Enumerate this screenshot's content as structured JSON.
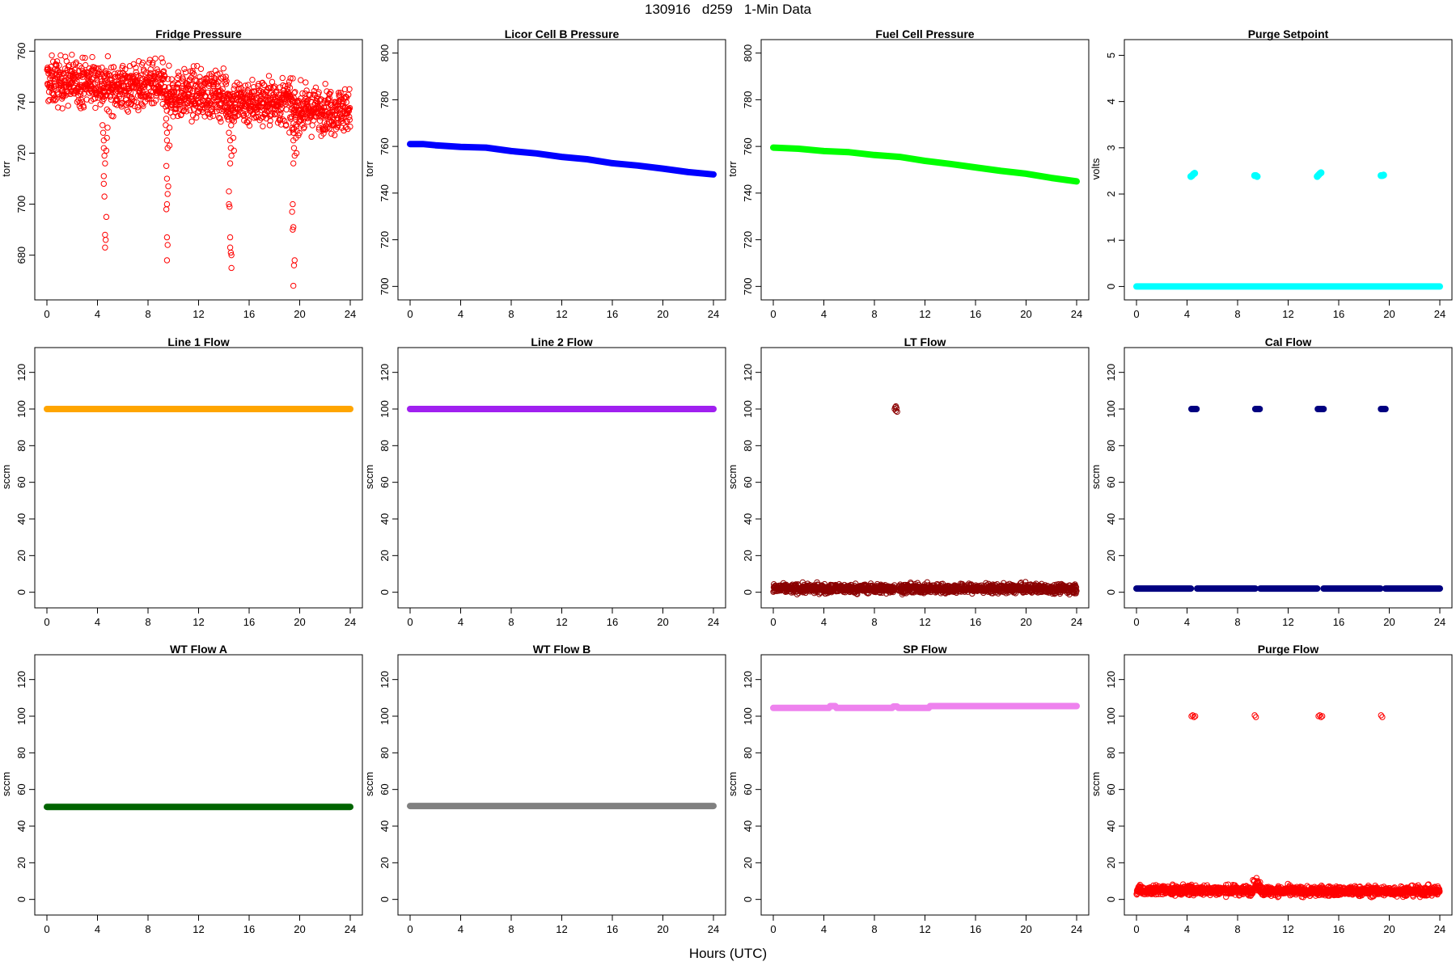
{
  "page": {
    "title": "130916   d259   1-Min Data",
    "xlabel": "Hours (UTC)"
  },
  "chart_data": [
    {
      "id": "fridge",
      "type": "scatter",
      "title": "Fridge Pressure",
      "ylabel": "torr",
      "color": "#ff0000",
      "marker": "open",
      "xlim": [
        0,
        24
      ],
      "ylim": [
        665,
        762
      ],
      "xticks": [
        0,
        4,
        8,
        12,
        16,
        20,
        24
      ],
      "yticks": [
        680,
        700,
        720,
        740,
        760
      ],
      "series": [
        {
          "kind": "noise",
          "segments": [
            [
              0,
              4.2,
              748,
              4.5
            ],
            [
              4.2,
              9.3,
              746,
              4.5
            ],
            [
              9.3,
              14.2,
              743,
              4.5
            ],
            [
              14.2,
              19.3,
              740,
              4.5
            ],
            [
              19.3,
              24,
              737,
              4.2
            ]
          ]
        },
        {
          "kind": "points",
          "points": [
            [
              4.4,
              731
            ],
            [
              4.45,
              728
            ],
            [
              4.5,
              725
            ],
            [
              4.5,
              722
            ],
            [
              4.55,
              719
            ],
            [
              4.6,
              716
            ],
            [
              4.5,
              711
            ],
            [
              4.5,
              708
            ],
            [
              4.55,
              703
            ],
            [
              4.7,
              695
            ],
            [
              4.6,
              688
            ],
            [
              4.65,
              686
            ],
            [
              4.6,
              683
            ],
            [
              4.7,
              721
            ],
            [
              4.75,
              726
            ],
            [
              4.8,
              730
            ],
            [
              9.4,
              731
            ],
            [
              9.5,
              728
            ],
            [
              9.5,
              725
            ],
            [
              9.55,
              722
            ],
            [
              9.45,
              715
            ],
            [
              9.5,
              710
            ],
            [
              9.6,
              707
            ],
            [
              9.55,
              704
            ],
            [
              9.5,
              700
            ],
            [
              9.45,
              698
            ],
            [
              9.5,
              687
            ],
            [
              9.55,
              684
            ],
            [
              9.5,
              678
            ],
            [
              9.7,
              730
            ],
            [
              9.7,
              723
            ],
            [
              14.4,
              728
            ],
            [
              14.5,
              725
            ],
            [
              14.55,
              722
            ],
            [
              14.6,
              719
            ],
            [
              14.5,
              716
            ],
            [
              14.4,
              705
            ],
            [
              14.4,
              700
            ],
            [
              14.45,
              699
            ],
            [
              14.5,
              687
            ],
            [
              14.5,
              683
            ],
            [
              14.55,
              681
            ],
            [
              14.6,
              680
            ],
            [
              14.6,
              675
            ],
            [
              14.75,
              726
            ],
            [
              14.8,
              721
            ],
            [
              19.4,
              730
            ],
            [
              19.5,
              728
            ],
            [
              19.5,
              725
            ],
            [
              19.55,
              722
            ],
            [
              19.6,
              719
            ],
            [
              19.5,
              716
            ],
            [
              19.45,
              700
            ],
            [
              19.4,
              697
            ],
            [
              19.5,
              691
            ],
            [
              19.45,
              690
            ],
            [
              19.6,
              678
            ],
            [
              19.55,
              676
            ],
            [
              19.5,
              668
            ],
            [
              19.7,
              726
            ],
            [
              19.75,
              720
            ]
          ]
        }
      ]
    },
    {
      "id": "licor",
      "type": "line",
      "title": "Licor Cell B Pressure",
      "ylabel": "torr",
      "color": "#0000ff",
      "marker": "filled",
      "xlim": [
        0,
        24
      ],
      "ylim": [
        697,
        803
      ],
      "xticks": [
        0,
        4,
        8,
        12,
        16,
        20,
        24
      ],
      "yticks": [
        700,
        720,
        740,
        760,
        780,
        800
      ],
      "series": [
        {
          "kind": "path",
          "points": [
            [
              0,
              761
            ],
            [
              1,
              761
            ],
            [
              2,
              760.5
            ],
            [
              4,
              759.8
            ],
            [
              6,
              759.5
            ],
            [
              8,
              758
            ],
            [
              10,
              757
            ],
            [
              12,
              755.5
            ],
            [
              14,
              754.5
            ],
            [
              16,
              752.8
            ],
            [
              18,
              751.8
            ],
            [
              20,
              750.5
            ],
            [
              22,
              749
            ],
            [
              24,
              748
            ]
          ]
        }
      ]
    },
    {
      "id": "fuelcell",
      "type": "line",
      "title": "Fuel Cell Pressure",
      "ylabel": "torr",
      "color": "#00ff00",
      "marker": "filled",
      "xlim": [
        0,
        24
      ],
      "ylim": [
        697,
        803
      ],
      "xticks": [
        0,
        4,
        8,
        12,
        16,
        20,
        24
      ],
      "yticks": [
        700,
        720,
        740,
        760,
        780,
        800
      ],
      "series": [
        {
          "kind": "path",
          "points": [
            [
              0,
              759.5
            ],
            [
              2,
              759
            ],
            [
              4,
              758
            ],
            [
              6,
              757.5
            ],
            [
              8,
              756.3
            ],
            [
              10,
              755.5
            ],
            [
              12,
              753.8
            ],
            [
              14,
              752.5
            ],
            [
              16,
              751
            ],
            [
              18,
              749.5
            ],
            [
              20,
              748.3
            ],
            [
              22,
              746.5
            ],
            [
              24,
              745
            ]
          ]
        }
      ]
    },
    {
      "id": "purgesetpoint",
      "type": "scatter",
      "title": "Purge Setpoint",
      "ylabel": "volts",
      "color": "#00ffff",
      "marker": "filled",
      "xlim": [
        0,
        24
      ],
      "ylim": [
        -0.15,
        5.2
      ],
      "xticks": [
        0,
        4,
        8,
        12,
        16,
        20,
        24
      ],
      "yticks": [
        0,
        1,
        2,
        3,
        4,
        5
      ],
      "series": [
        {
          "kind": "path",
          "points": [
            [
              0,
              0
            ],
            [
              24,
              0
            ]
          ]
        },
        {
          "kind": "points",
          "points": [
            [
              4.3,
              2.38
            ],
            [
              4.4,
              2.4
            ],
            [
              4.5,
              2.43
            ],
            [
              4.6,
              2.45
            ],
            [
              9.35,
              2.4
            ],
            [
              9.45,
              2.4
            ],
            [
              9.55,
              2.38
            ],
            [
              14.3,
              2.38
            ],
            [
              14.4,
              2.41
            ],
            [
              14.5,
              2.44
            ],
            [
              14.6,
              2.46
            ],
            [
              19.35,
              2.4
            ],
            [
              19.45,
              2.4
            ],
            [
              19.55,
              2.41
            ]
          ]
        }
      ]
    },
    {
      "id": "line1",
      "type": "line",
      "title": "Line 1 Flow",
      "ylabel": "sccm",
      "color": "#ffa500",
      "marker": "filled",
      "xlim": [
        0,
        24
      ],
      "ylim": [
        -5,
        130
      ],
      "xticks": [
        0,
        4,
        8,
        12,
        16,
        20,
        24
      ],
      "yticks": [
        0,
        20,
        40,
        60,
        80,
        100,
        120
      ],
      "series": [
        {
          "kind": "path",
          "points": [
            [
              0,
              100
            ],
            [
              24,
              100
            ]
          ]
        }
      ]
    },
    {
      "id": "line2",
      "type": "line",
      "title": "Line 2 Flow",
      "ylabel": "sccm",
      "color": "#a020f0",
      "marker": "filled",
      "xlim": [
        0,
        24
      ],
      "ylim": [
        -5,
        130
      ],
      "xticks": [
        0,
        4,
        8,
        12,
        16,
        20,
        24
      ],
      "yticks": [
        0,
        20,
        40,
        60,
        80,
        100,
        120
      ],
      "series": [
        {
          "kind": "path",
          "points": [
            [
              0,
              100
            ],
            [
              24,
              100
            ]
          ]
        }
      ]
    },
    {
      "id": "ltflow",
      "type": "scatter",
      "title": "LT Flow",
      "ylabel": "sccm",
      "color": "#8b0000",
      "marker": "open",
      "xlim": [
        0,
        24
      ],
      "ylim": [
        -5,
        130
      ],
      "xticks": [
        0,
        4,
        8,
        12,
        16,
        20,
        24
      ],
      "yticks": [
        0,
        20,
        40,
        60,
        80,
        100,
        120
      ],
      "series": [
        {
          "kind": "noise",
          "segments": [
            [
              0,
              9.6,
              2,
              1.2
            ],
            [
              9.9,
              24,
              2,
              1.2
            ]
          ]
        },
        {
          "kind": "points",
          "points": [
            [
              9.6,
              100
            ],
            [
              9.65,
              101
            ],
            [
              9.7,
              99
            ],
            [
              9.75,
              100.5
            ],
            [
              9.8,
              98.5
            ],
            [
              9.7,
              101.5
            ]
          ]
        }
      ]
    },
    {
      "id": "calflow",
      "type": "scatter",
      "title": "Cal Flow",
      "ylabel": "sccm",
      "color": "#000080",
      "marker": "filled",
      "xlim": [
        0,
        24
      ],
      "ylim": [
        -5,
        130
      ],
      "xticks": [
        0,
        4,
        8,
        12,
        16,
        20,
        24
      ],
      "yticks": [
        0,
        20,
        40,
        60,
        80,
        100,
        120
      ],
      "series": [
        {
          "kind": "path",
          "points": [
            [
              0,
              2
            ],
            [
              4.3,
              2
            ]
          ]
        },
        {
          "kind": "path",
          "points": [
            [
              4.8,
              2
            ],
            [
              9.4,
              2
            ]
          ]
        },
        {
          "kind": "path",
          "points": [
            [
              9.8,
              2
            ],
            [
              14.3,
              2
            ]
          ]
        },
        {
          "kind": "path",
          "points": [
            [
              14.8,
              2
            ],
            [
              19.3,
              2
            ]
          ]
        },
        {
          "kind": "path",
          "points": [
            [
              19.7,
              2
            ],
            [
              24,
              2
            ]
          ]
        },
        {
          "kind": "path",
          "points": [
            [
              4.35,
              100
            ],
            [
              4.75,
              100
            ]
          ]
        },
        {
          "kind": "path",
          "points": [
            [
              9.4,
              100
            ],
            [
              9.75,
              100
            ]
          ]
        },
        {
          "kind": "path",
          "points": [
            [
              14.35,
              100
            ],
            [
              14.8,
              100
            ]
          ]
        },
        {
          "kind": "path",
          "points": [
            [
              19.35,
              100
            ],
            [
              19.7,
              100
            ]
          ]
        }
      ]
    },
    {
      "id": "wtflowa",
      "type": "line",
      "title": "WT Flow A",
      "ylabel": "sccm",
      "color": "#006400",
      "marker": "filled",
      "xlim": [
        0,
        24
      ],
      "ylim": [
        -5,
        130
      ],
      "xticks": [
        0,
        4,
        8,
        12,
        16,
        20,
        24
      ],
      "yticks": [
        0,
        20,
        40,
        60,
        80,
        100,
        120
      ],
      "series": [
        {
          "kind": "path",
          "points": [
            [
              0,
              50.5
            ],
            [
              24,
              50.5
            ]
          ]
        }
      ]
    },
    {
      "id": "wtflowb",
      "type": "line",
      "title": "WT Flow B",
      "ylabel": "sccm",
      "color": "#808080",
      "marker": "filled",
      "xlim": [
        0,
        24
      ],
      "ylim": [
        -5,
        130
      ],
      "xticks": [
        0,
        4,
        8,
        12,
        16,
        20,
        24
      ],
      "yticks": [
        0,
        20,
        40,
        60,
        80,
        100,
        120
      ],
      "series": [
        {
          "kind": "path",
          "points": [
            [
              0,
              51
            ],
            [
              24,
              51
            ]
          ]
        }
      ]
    },
    {
      "id": "spflow",
      "type": "line",
      "title": "SP Flow",
      "ylabel": "sccm",
      "color": "#ee82ee",
      "marker": "filled",
      "xlim": [
        0,
        24
      ],
      "ylim": [
        -5,
        130
      ],
      "xticks": [
        0,
        4,
        8,
        12,
        16,
        20,
        24
      ],
      "yticks": [
        0,
        20,
        40,
        60,
        80,
        100,
        120
      ],
      "series": [
        {
          "kind": "path",
          "points": [
            [
              0,
              104.5
            ],
            [
              4.4,
              104.5
            ],
            [
              4.5,
              105.5
            ],
            [
              4.9,
              105.5
            ],
            [
              5,
              104.5
            ],
            [
              9.4,
              104.5
            ],
            [
              9.5,
              105.3
            ],
            [
              9.8,
              105.3
            ],
            [
              9.9,
              104.5
            ],
            [
              12.3,
              104.5
            ],
            [
              12.4,
              105.5
            ],
            [
              24,
              105.5
            ]
          ]
        }
      ]
    },
    {
      "id": "purgeflow",
      "type": "scatter",
      "title": "Purge Flow",
      "ylabel": "sccm",
      "color": "#ff0000",
      "marker": "open",
      "xlim": [
        0,
        24
      ],
      "ylim": [
        -5,
        130
      ],
      "xticks": [
        0,
        4,
        8,
        12,
        16,
        20,
        24
      ],
      "yticks": [
        0,
        20,
        40,
        60,
        80,
        100,
        120
      ],
      "series": [
        {
          "kind": "noise",
          "segments": [
            [
              0,
              9.2,
              5,
              1.3
            ],
            [
              9.2,
              9.9,
              7,
              1.6
            ],
            [
              9.9,
              24,
              4.5,
              1.3
            ]
          ]
        },
        {
          "kind": "points",
          "points": [
            [
              4.35,
              100
            ],
            [
              4.45,
              100.5
            ],
            [
              4.55,
              99.5
            ],
            [
              4.65,
              100
            ],
            [
              9.35,
              100.5
            ],
            [
              9.45,
              99.5
            ],
            [
              14.4,
              100
            ],
            [
              14.5,
              100.5
            ],
            [
              14.6,
              99.5
            ],
            [
              14.7,
              100
            ],
            [
              19.35,
              100.5
            ],
            [
              19.45,
              99.5
            ],
            [
              9.6,
              10
            ],
            [
              9.5,
              9
            ]
          ]
        }
      ]
    }
  ]
}
